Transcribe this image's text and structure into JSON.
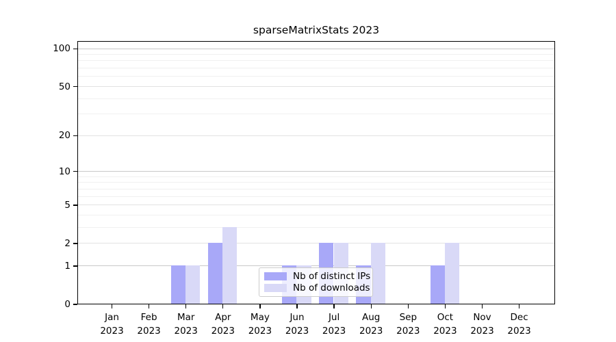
{
  "chart_data": {
    "type": "bar",
    "title": "sparseMatrixStats 2023",
    "categories": [
      "Jan",
      "Feb",
      "Mar",
      "Apr",
      "May",
      "Jun",
      "Jul",
      "Aug",
      "Sep",
      "Oct",
      "Nov",
      "Dec"
    ],
    "category_sublabel": "2023",
    "series": [
      {
        "name": "Nb of distinct IPs",
        "color": "#a8a8f8",
        "values": [
          0,
          0,
          1,
          2,
          0,
          1,
          2,
          1,
          0,
          1,
          0,
          0
        ]
      },
      {
        "name": "Nb of downloads",
        "color": "#d9d9f7",
        "values": [
          0,
          0,
          1,
          3,
          0,
          1,
          2,
          2,
          0,
          2,
          0,
          0
        ]
      }
    ],
    "yscale": "log1p",
    "ylim": [
      0,
      115
    ],
    "y_ticks": [
      {
        "value": 0,
        "label": "0"
      },
      {
        "value": 1,
        "label": "1"
      },
      {
        "value": 2,
        "label": "2"
      },
      {
        "value": 5,
        "label": "5"
      },
      {
        "value": 10,
        "label": "10"
      },
      {
        "value": 20,
        "label": "20"
      },
      {
        "value": 50,
        "label": "50"
      },
      {
        "value": 100,
        "label": "100"
      }
    ],
    "y_minor_gridlines": [
      3,
      4,
      6,
      7,
      8,
      9,
      30,
      40,
      60,
      70,
      80,
      90
    ],
    "grid": true,
    "legend": {
      "position": "inside-bottom-center"
    },
    "colors": {
      "axis": "#000000",
      "grid_decade": "#c8c8c8",
      "grid_labeled": "#e2e2e2",
      "grid_minor": "#f0f0f0"
    }
  }
}
